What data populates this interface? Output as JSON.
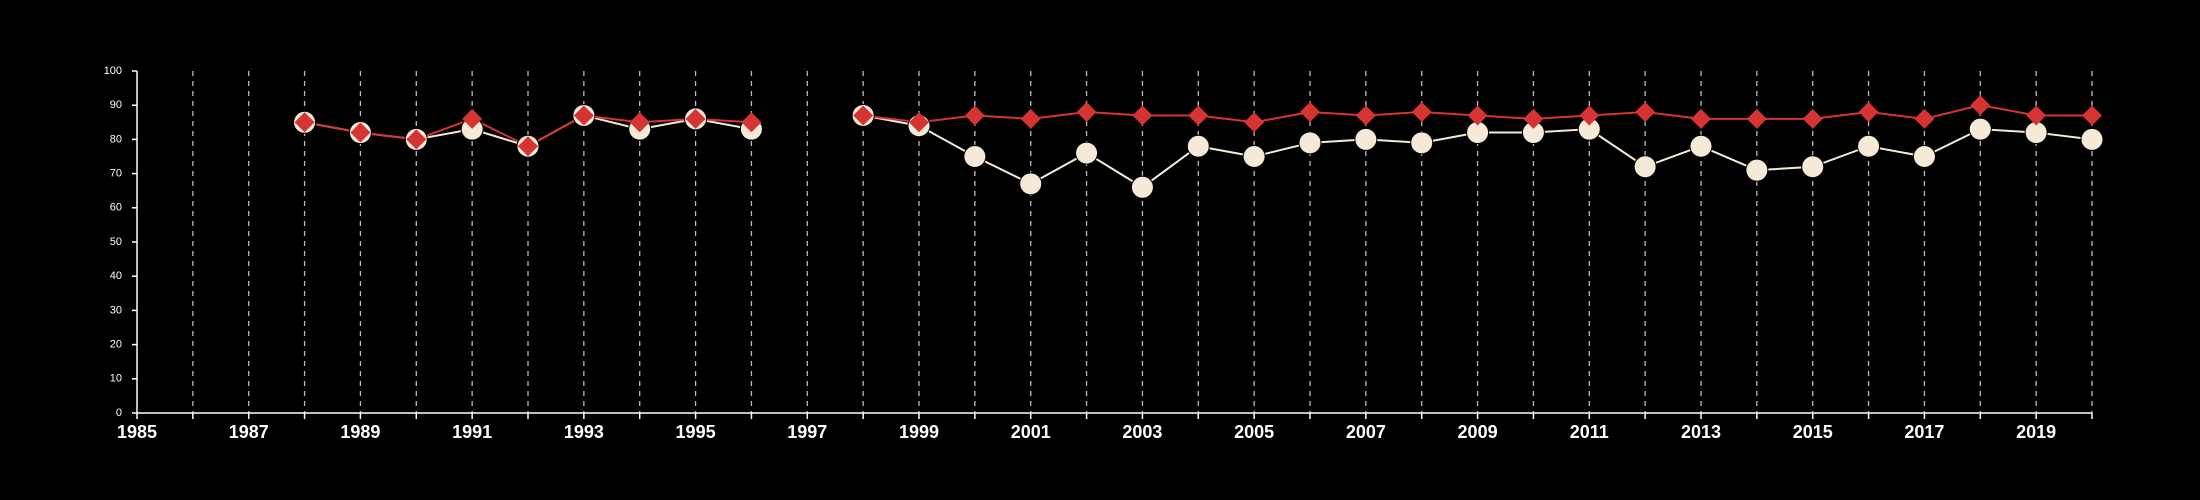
{
  "chart_data": {
    "type": "line",
    "title": "",
    "xlabel": "",
    "ylabel": "",
    "xlim": [
      1985,
      2020
    ],
    "ylim": [
      0,
      100
    ],
    "x_ticks": [
      1985,
      1987,
      1989,
      1991,
      1993,
      1995,
      1997,
      1999,
      2001,
      2003,
      2005,
      2007,
      2009,
      2011,
      2013,
      2015,
      2017,
      2019
    ],
    "x_tick_labels": [
      "1985",
      "1987",
      "1989",
      "1991",
      "1993",
      "1995",
      "1997",
      "1999",
      "2001",
      "2003",
      "2005",
      "2007",
      "2009",
      "2011",
      "2013",
      "2015",
      "2017",
      "2019"
    ],
    "y_ticks": [
      0,
      10,
      20,
      30,
      40,
      50,
      60,
      70,
      80,
      90,
      100
    ],
    "y_tick_labels": [
      "0",
      "10",
      "20",
      "30",
      "40",
      "50",
      "60",
      "70",
      "80",
      "90",
      "100"
    ],
    "grid": "vertical dashed lines at each year",
    "legend": "none",
    "x": [
      1988,
      1989,
      1990,
      1991,
      1992,
      1993,
      1994,
      1995,
      1996,
      1998,
      1999,
      2000,
      2001,
      2002,
      2003,
      2004,
      2005,
      2006,
      2007,
      2008,
      2009,
      2010,
      2011,
      2012,
      2013,
      2014,
      2015,
      2016,
      2017,
      2018,
      2019,
      2020
    ],
    "series": [
      {
        "marker": "circle",
        "color": "#f5e9d8",
        "values": [
          85,
          82,
          80,
          83,
          78,
          87,
          83,
          86,
          83,
          87,
          84,
          75,
          67,
          76,
          66,
          78,
          75,
          79,
          80,
          79,
          82,
          82,
          83,
          72,
          78,
          71,
          72,
          78,
          75,
          83,
          82,
          80
        ]
      },
      {
        "marker": "diamond",
        "color": "#d63333",
        "values": [
          85,
          82,
          80,
          86,
          78,
          87,
          85,
          86,
          85,
          87,
          85,
          87,
          86,
          88,
          87,
          87,
          85,
          88,
          87,
          88,
          87,
          86,
          87,
          88,
          86,
          86,
          86,
          88,
          86,
          90,
          87,
          87
        ]
      }
    ]
  }
}
